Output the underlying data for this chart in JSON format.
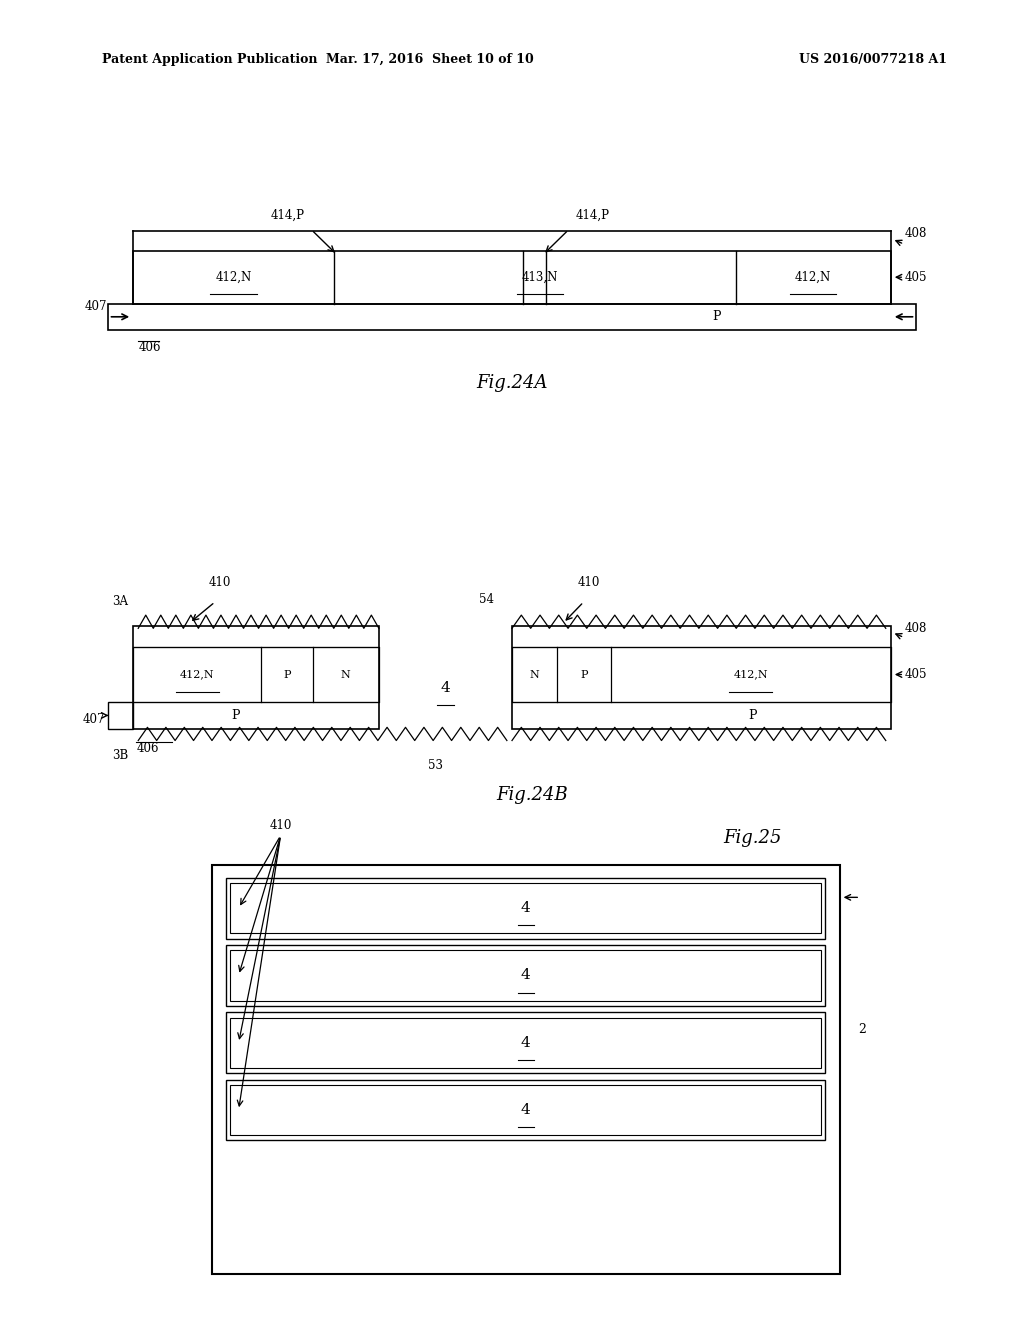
{
  "bg_color": "#ffffff",
  "header_left": "Patent Application Publication",
  "header_mid": "Mar. 17, 2016  Sheet 10 of 10",
  "header_right": "US 2016/0077218 A1"
}
